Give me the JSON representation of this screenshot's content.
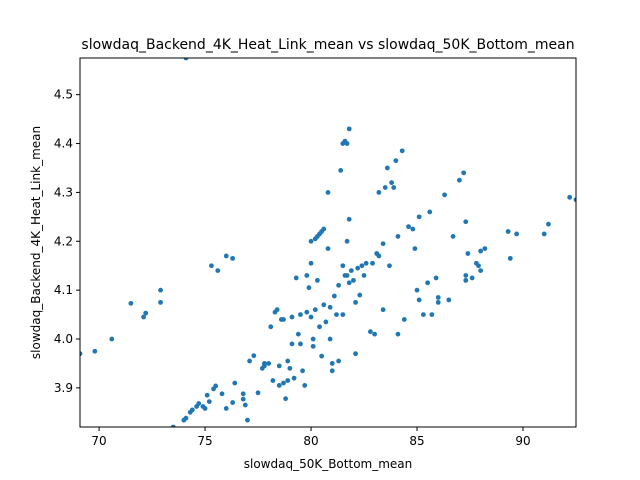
{
  "chart_data": {
    "type": "scatter",
    "title": "slowdaq_Backend_4K_Heat_Link_mean vs slowdaq_50K_Bottom_mean",
    "xlabel": "slowdaq_50K_Bottom_mean",
    "ylabel": "slowdaq_Backend_4K_Heat_Link_mean",
    "xlim": [
      69.1,
      92.5
    ],
    "ylim": [
      3.82,
      4.575
    ],
    "xticks": [
      70,
      75,
      80,
      85,
      90
    ],
    "yticks": [
      3.9,
      4.0,
      4.1,
      4.2,
      4.3,
      4.4,
      4.5
    ],
    "grid": false,
    "color": "#1f77b4",
    "points": [
      [
        69.1,
        3.97
      ],
      [
        69.8,
        3.975
      ],
      [
        70.6,
        4.0
      ],
      [
        71.5,
        4.073
      ],
      [
        72.1,
        4.045
      ],
      [
        72.2,
        4.053
      ],
      [
        72.9,
        4.075
      ],
      [
        72.9,
        4.1
      ],
      [
        73.5,
        3.82
      ],
      [
        74.0,
        3.834
      ],
      [
        74.1,
        3.838
      ],
      [
        74.3,
        3.85
      ],
      [
        74.4,
        3.855
      ],
      [
        74.6,
        3.862
      ],
      [
        74.7,
        3.868
      ],
      [
        74.9,
        3.862
      ],
      [
        75.0,
        3.858
      ],
      [
        75.1,
        3.885
      ],
      [
        75.2,
        3.872
      ],
      [
        75.4,
        3.898
      ],
      [
        75.5,
        3.904
      ],
      [
        75.8,
        3.888
      ],
      [
        76.0,
        3.858
      ],
      [
        76.3,
        3.87
      ],
      [
        76.4,
        3.91
      ],
      [
        76.8,
        3.888
      ],
      [
        76.8,
        3.877
      ],
      [
        76.9,
        3.865
      ],
      [
        77.0,
        3.834
      ],
      [
        77.1,
        3.955
      ],
      [
        77.3,
        3.966
      ],
      [
        77.5,
        3.89
      ],
      [
        77.7,
        3.94
      ],
      [
        77.8,
        3.945
      ],
      [
        77.8,
        3.95
      ],
      [
        78.0,
        3.95
      ],
      [
        78.1,
        4.025
      ],
      [
        78.2,
        3.915
      ],
      [
        78.3,
        4.055
      ],
      [
        78.4,
        4.06
      ],
      [
        78.5,
        3.945
      ],
      [
        78.5,
        3.905
      ],
      [
        78.6,
        4.04
      ],
      [
        78.7,
        4.04
      ],
      [
        78.7,
        3.91
      ],
      [
        78.8,
        3.878
      ],
      [
        78.9,
        3.955
      ],
      [
        78.9,
        3.915
      ],
      [
        79.0,
        3.94
      ],
      [
        79.1,
        3.99
      ],
      [
        79.1,
        4.045
      ],
      [
        79.2,
        3.92
      ],
      [
        79.3,
        4.125
      ],
      [
        79.4,
        4.01
      ],
      [
        79.5,
        4.05
      ],
      [
        79.5,
        3.99
      ],
      [
        79.6,
        3.935
      ],
      [
        79.7,
        3.905
      ],
      [
        79.8,
        4.055
      ],
      [
        79.8,
        4.13
      ],
      [
        79.9,
        4.105
      ],
      [
        80.0,
        4.2
      ],
      [
        80.0,
        4.155
      ],
      [
        80.0,
        4.045
      ],
      [
        80.1,
        4.0
      ],
      [
        80.1,
        3.985
      ],
      [
        80.2,
        4.205
      ],
      [
        80.2,
        4.06
      ],
      [
        80.3,
        4.21
      ],
      [
        80.3,
        4.12
      ],
      [
        80.4,
        4.215
      ],
      [
        80.4,
        4.025
      ],
      [
        80.5,
        4.22
      ],
      [
        80.5,
        3.965
      ],
      [
        80.6,
        4.225
      ],
      [
        80.6,
        4.07
      ],
      [
        80.7,
        4.035
      ],
      [
        80.8,
        4.185
      ],
      [
        80.8,
        4.3
      ],
      [
        80.9,
        4.065
      ],
      [
        80.9,
        4.0
      ],
      [
        81.0,
        3.95
      ],
      [
        81.0,
        3.935
      ],
      [
        81.1,
        4.088
      ],
      [
        81.2,
        4.05
      ],
      [
        81.3,
        4.11
      ],
      [
        81.3,
        3.955
      ],
      [
        81.4,
        4.345
      ],
      [
        81.5,
        4.4
      ],
      [
        81.5,
        4.15
      ],
      [
        81.5,
        4.05
      ],
      [
        81.6,
        4.405
      ],
      [
        81.6,
        4.13
      ],
      [
        81.7,
        4.4
      ],
      [
        81.7,
        4.2
      ],
      [
        81.7,
        4.13
      ],
      [
        81.8,
        4.43
      ],
      [
        81.8,
        4.245
      ],
      [
        81.8,
        4.115
      ],
      [
        81.9,
        4.14
      ],
      [
        82.0,
        4.12
      ],
      [
        82.1,
        4.075
      ],
      [
        82.1,
        3.97
      ],
      [
        82.2,
        4.145
      ],
      [
        82.3,
        4.09
      ],
      [
        82.4,
        4.15
      ],
      [
        82.5,
        4.13
      ],
      [
        82.6,
        4.155
      ],
      [
        82.8,
        4.015
      ],
      [
        82.9,
        4.155
      ],
      [
        83.0,
        4.01
      ],
      [
        83.1,
        4.175
      ],
      [
        83.2,
        4.17
      ],
      [
        83.2,
        4.3
      ],
      [
        83.4,
        4.195
      ],
      [
        83.4,
        4.06
      ],
      [
        83.5,
        4.31
      ],
      [
        83.6,
        4.35
      ],
      [
        83.7,
        4.15
      ],
      [
        83.8,
        4.32
      ],
      [
        83.9,
        4.31
      ],
      [
        84.0,
        4.365
      ],
      [
        84.1,
        4.21
      ],
      [
        84.1,
        4.01
      ],
      [
        84.3,
        4.385
      ],
      [
        84.4,
        4.04
      ],
      [
        84.6,
        4.23
      ],
      [
        84.8,
        4.225
      ],
      [
        84.9,
        4.185
      ],
      [
        85.0,
        4.1
      ],
      [
        85.1,
        4.08
      ],
      [
        85.1,
        4.25
      ],
      [
        85.3,
        4.05
      ],
      [
        85.5,
        4.115
      ],
      [
        85.6,
        4.26
      ],
      [
        85.7,
        4.05
      ],
      [
        85.9,
        4.125
      ],
      [
        86.0,
        4.085
      ],
      [
        86.0,
        4.075
      ],
      [
        86.3,
        4.295
      ],
      [
        86.5,
        4.08
      ],
      [
        86.7,
        4.21
      ],
      [
        87.0,
        4.325
      ],
      [
        87.2,
        4.34
      ],
      [
        87.3,
        4.24
      ],
      [
        87.3,
        4.13
      ],
      [
        87.3,
        4.12
      ],
      [
        87.4,
        4.175
      ],
      [
        87.6,
        4.125
      ],
      [
        87.8,
        4.155
      ],
      [
        87.9,
        4.15
      ],
      [
        88.0,
        4.14
      ],
      [
        88.0,
        4.18
      ],
      [
        88.2,
        4.185
      ],
      [
        89.3,
        4.22
      ],
      [
        89.4,
        4.165
      ],
      [
        89.7,
        4.215
      ],
      [
        91.0,
        4.215
      ],
      [
        91.2,
        4.235
      ],
      [
        92.2,
        4.29
      ],
      [
        92.5,
        4.285
      ],
      [
        74.1,
        4.575
      ],
      [
        75.3,
        4.15
      ],
      [
        75.6,
        4.14
      ],
      [
        76.0,
        4.17
      ],
      [
        76.3,
        4.165
      ]
    ]
  }
}
